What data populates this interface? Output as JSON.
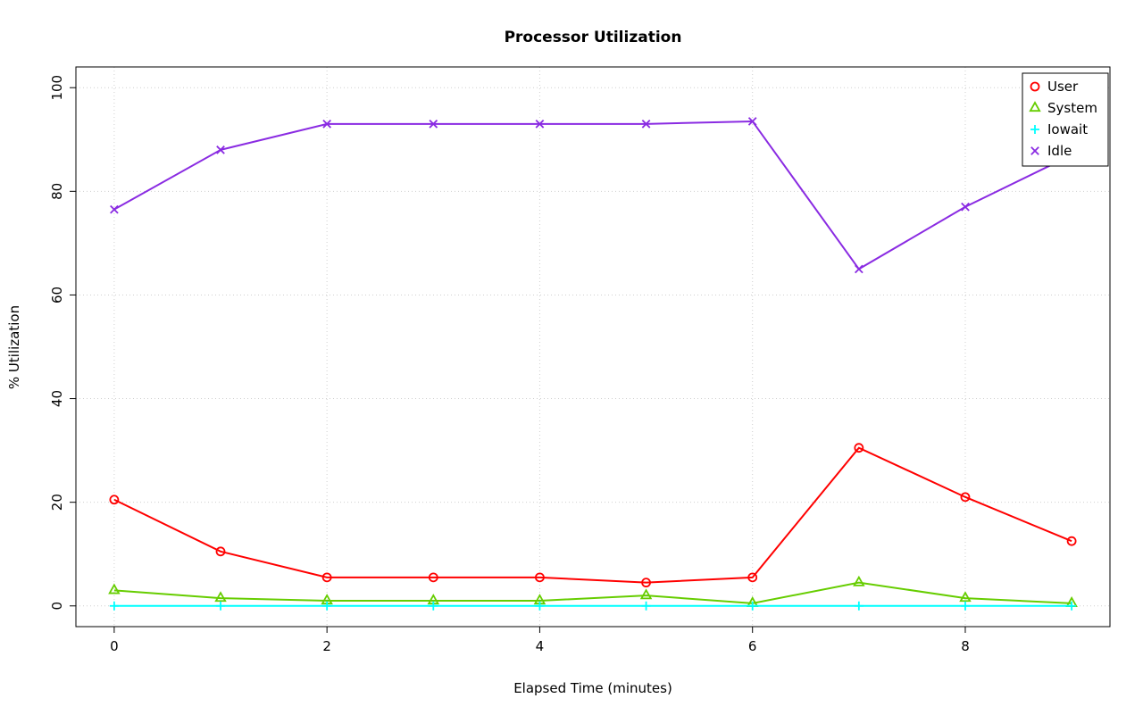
{
  "chart_data": {
    "type": "line",
    "title": "Processor Utilization",
    "xlabel": "Elapsed Time (minutes)",
    "ylabel": "% Utilization",
    "x": [
      0,
      1,
      2,
      3,
      4,
      5,
      6,
      7,
      8,
      9
    ],
    "xlim": [
      -0.36,
      9.36
    ],
    "ylim": [
      -4,
      104
    ],
    "xticks": [
      0,
      2,
      4,
      6,
      8
    ],
    "yticks": [
      0,
      20,
      40,
      60,
      80,
      100
    ],
    "grid": true,
    "grid_color": "#cfcfcf",
    "legend_position": "top-right",
    "series": [
      {
        "name": "User",
        "marker": "circle",
        "color": "#ff0000",
        "values": [
          20.5,
          10.5,
          5.5,
          5.5,
          5.5,
          4.5,
          5.5,
          30.5,
          21,
          12.5
        ]
      },
      {
        "name": "System",
        "marker": "triangle",
        "color": "#66cd00",
        "values": [
          3,
          1.5,
          1,
          1,
          1,
          2,
          0.5,
          4.5,
          1.5,
          0.5
        ]
      },
      {
        "name": "Iowait",
        "marker": "plus",
        "color": "#00ffff",
        "values": [
          0,
          0,
          0,
          0,
          0,
          0,
          0,
          0,
          0,
          0
        ]
      },
      {
        "name": "Idle",
        "marker": "x",
        "color": "#8a2be2",
        "values": [
          76.5,
          88,
          93,
          93,
          93,
          93,
          93.5,
          65,
          77,
          87
        ]
      }
    ]
  }
}
